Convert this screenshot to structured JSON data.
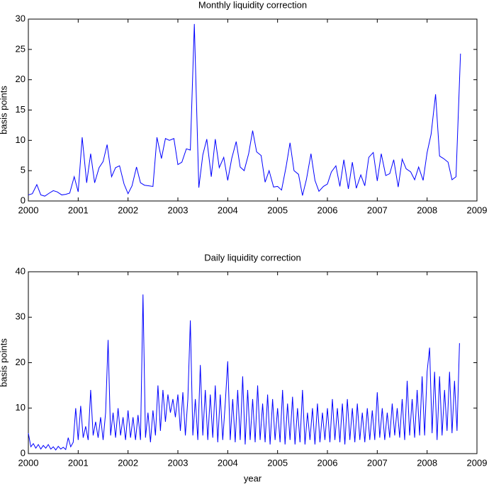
{
  "chart_data": [
    {
      "type": "line",
      "title": "Monthly liquidity correction",
      "ylabel": "basis points",
      "xlim": [
        2000,
        2009
      ],
      "xticks": [
        2000,
        2001,
        2002,
        2003,
        2004,
        2005,
        2006,
        2007,
        2008,
        2009
      ],
      "ylim": [
        0,
        30
      ],
      "yticks": [
        0,
        5,
        10,
        15,
        20,
        25,
        30
      ],
      "grid": false,
      "series": [
        {
          "name": "Monthly liquidity correction",
          "color": "#0000ff",
          "x": [
            2000,
            2000.08,
            2000.17,
            2000.25,
            2000.33,
            2000.42,
            2000.5,
            2000.58,
            2000.67,
            2000.75,
            2000.83,
            2000.92,
            2001,
            2001.08,
            2001.17,
            2001.25,
            2001.33,
            2001.42,
            2001.5,
            2001.58,
            2001.67,
            2001.75,
            2001.83,
            2001.92,
            2002,
            2002.08,
            2002.17,
            2002.25,
            2002.33,
            2002.42,
            2002.5,
            2002.58,
            2002.67,
            2002.75,
            2002.83,
            2002.92,
            2003,
            2003.08,
            2003.17,
            2003.25,
            2003.33,
            2003.42,
            2003.5,
            2003.58,
            2003.67,
            2003.75,
            2003.83,
            2003.92,
            2004,
            2004.08,
            2004.17,
            2004.25,
            2004.33,
            2004.42,
            2004.5,
            2004.58,
            2004.67,
            2004.75,
            2004.83,
            2004.92,
            2005,
            2005.08,
            2005.17,
            2005.25,
            2005.33,
            2005.42,
            2005.5,
            2005.58,
            2005.67,
            2005.75,
            2005.83,
            2005.92,
            2006,
            2006.08,
            2006.17,
            2006.25,
            2006.33,
            2006.42,
            2006.5,
            2006.58,
            2006.67,
            2006.75,
            2006.83,
            2006.92,
            2007,
            2007.08,
            2007.17,
            2007.25,
            2007.33,
            2007.42,
            2007.5,
            2007.58,
            2007.67,
            2007.75,
            2007.83,
            2007.92,
            2008,
            2008.08,
            2008.17,
            2008.25,
            2008.33,
            2008.42,
            2008.5,
            2008.58,
            2008.67
          ],
          "values": [
            1.0,
            1.2,
            2.7,
            1.0,
            0.8,
            1.3,
            1.7,
            1.5,
            1.0,
            1.1,
            1.3,
            4.0,
            1.5,
            10.5,
            3.0,
            7.8,
            3.0,
            5.5,
            6.5,
            9.3,
            4.0,
            5.5,
            5.8,
            2.8,
            1.2,
            2.5,
            5.6,
            3.0,
            2.6,
            2.5,
            2.4,
            10.5,
            7.0,
            10.3,
            10.0,
            10.3,
            6.0,
            6.4,
            8.6,
            8.4,
            29.2,
            2.2,
            7.6,
            10.2,
            4.0,
            10.2,
            5.5,
            7.2,
            3.4,
            7.0,
            9.8,
            5.6,
            5.0,
            7.8,
            11.6,
            8.1,
            7.5,
            3.1,
            5.0,
            2.3,
            2.4,
            1.8,
            5.6,
            9.6,
            5.0,
            4.4,
            0.9,
            3.6,
            7.8,
            3.4,
            1.6,
            2.4,
            2.8,
            4.8,
            5.8,
            2.4,
            6.8,
            2.0,
            6.4,
            2.1,
            4.3,
            2.5,
            7.2,
            8.0,
            3.3,
            7.8,
            4.2,
            4.5,
            6.8,
            2.3,
            6.9,
            5.3,
            4.8,
            3.5,
            5.6,
            3.4,
            8.0,
            11.0,
            17.6,
            7.4,
            7.0,
            6.4,
            3.5,
            4.0,
            24.3
          ]
        }
      ]
    },
    {
      "type": "line",
      "title": "Daily liquidity correction",
      "xlabel": "year",
      "ylabel": "basis points",
      "xlim": [
        2000,
        2009
      ],
      "xticks": [
        2000,
        2001,
        2002,
        2003,
        2004,
        2005,
        2006,
        2007,
        2008,
        2009
      ],
      "ylim": [
        0,
        40
      ],
      "yticks": [
        0,
        10,
        20,
        30,
        40
      ],
      "grid": false,
      "series": [
        {
          "name": "Daily liquidity correction",
          "color": "#0000ff",
          "x": [
            2000,
            2000.05,
            2000.1,
            2000.15,
            2000.2,
            2000.25,
            2000.3,
            2000.35,
            2000.4,
            2000.45,
            2000.5,
            2000.55,
            2000.6,
            2000.65,
            2000.7,
            2000.75,
            2000.8,
            2000.85,
            2000.9,
            2000.95,
            2001,
            2001.05,
            2001.1,
            2001.15,
            2001.2,
            2001.25,
            2001.3,
            2001.35,
            2001.4,
            2001.45,
            2001.5,
            2001.55,
            2001.6,
            2001.65,
            2001.7,
            2001.75,
            2001.8,
            2001.85,
            2001.9,
            2001.95,
            2002,
            2002.05,
            2002.1,
            2002.15,
            2002.2,
            2002.25,
            2002.3,
            2002.35,
            2002.4,
            2002.45,
            2002.5,
            2002.55,
            2002.6,
            2002.65,
            2002.7,
            2002.75,
            2002.8,
            2002.85,
            2002.9,
            2002.95,
            2003,
            2003.05,
            2003.1,
            2003.15,
            2003.2,
            2003.25,
            2003.3,
            2003.35,
            2003.4,
            2003.45,
            2003.5,
            2003.55,
            2003.6,
            2003.65,
            2003.7,
            2003.75,
            2003.8,
            2003.85,
            2003.9,
            2003.95,
            2004,
            2004.05,
            2004.1,
            2004.15,
            2004.2,
            2004.25,
            2004.3,
            2004.35,
            2004.4,
            2004.45,
            2004.5,
            2004.55,
            2004.6,
            2004.65,
            2004.7,
            2004.75,
            2004.8,
            2004.85,
            2004.9,
            2004.95,
            2005,
            2005.05,
            2005.1,
            2005.15,
            2005.2,
            2005.25,
            2005.3,
            2005.35,
            2005.4,
            2005.45,
            2005.5,
            2005.55,
            2005.6,
            2005.65,
            2005.7,
            2005.75,
            2005.8,
            2005.85,
            2005.9,
            2005.95,
            2006,
            2006.05,
            2006.1,
            2006.15,
            2006.2,
            2006.25,
            2006.3,
            2006.35,
            2006.4,
            2006.45,
            2006.5,
            2006.55,
            2006.6,
            2006.65,
            2006.7,
            2006.75,
            2006.8,
            2006.85,
            2006.9,
            2006.95,
            2007,
            2007.05,
            2007.1,
            2007.15,
            2007.2,
            2007.25,
            2007.3,
            2007.35,
            2007.4,
            2007.45,
            2007.5,
            2007.55,
            2007.6,
            2007.65,
            2007.7,
            2007.75,
            2007.8,
            2007.85,
            2007.9,
            2007.95,
            2008,
            2008.05,
            2008.1,
            2008.15,
            2008.2,
            2008.25,
            2008.3,
            2008.35,
            2008.4,
            2008.45,
            2008.5,
            2008.55,
            2008.6,
            2008.65
          ],
          "values": [
            4.5,
            1.5,
            2.2,
            1.2,
            2.0,
            1.0,
            1.8,
            1.2,
            2.0,
            1.0,
            1.5,
            0.8,
            1.6,
            1.0,
            1.4,
            0.9,
            3.5,
            1.5,
            2.5,
            10.0,
            3.0,
            10.5,
            3.5,
            6.0,
            3.0,
            14.0,
            4.0,
            7.0,
            3.5,
            8.0,
            3.0,
            9.0,
            25.0,
            4.0,
            9.0,
            3.5,
            10.0,
            4.0,
            8.0,
            3.0,
            9.5,
            3.5,
            8.0,
            3.0,
            8.5,
            3.0,
            35.0,
            3.5,
            9.0,
            2.5,
            9.5,
            4.0,
            15.0,
            5.0,
            14.0,
            7.0,
            13.0,
            9.0,
            12.0,
            8.0,
            13.0,
            5.0,
            13.5,
            4.0,
            12.0,
            29.3,
            4.0,
            12.0,
            3.0,
            19.5,
            4.0,
            14.0,
            3.0,
            13.0,
            3.5,
            15.0,
            2.5,
            13.0,
            3.0,
            11.0,
            20.3,
            3.0,
            12.0,
            2.5,
            14.0,
            3.0,
            17.0,
            2.0,
            14.0,
            3.0,
            12.0,
            2.5,
            15.0,
            3.0,
            11.0,
            2.5,
            13.0,
            2.0,
            12.0,
            3.0,
            10.0,
            2.5,
            14.0,
            2.0,
            11.0,
            3.0,
            12.5,
            2.0,
            10.0,
            2.5,
            14.0,
            2.0,
            9.0,
            3.0,
            10.0,
            2.0,
            11.0,
            2.5,
            9.0,
            3.0,
            10.0,
            2.5,
            12.0,
            3.0,
            10.0,
            2.5,
            11.0,
            2.0,
            12.0,
            3.0,
            10.0,
            2.5,
            11.0,
            3.0,
            9.0,
            2.5,
            10.0,
            3.0,
            9.5,
            3.0,
            13.5,
            3.5,
            10.0,
            3.0,
            9.0,
            3.5,
            11.0,
            4.0,
            10.0,
            3.5,
            12.0,
            3.0,
            16.0,
            4.0,
            12.0,
            3.5,
            14.0,
            4.0,
            17.0,
            4.0,
            18.0,
            23.3,
            4.5,
            18.0,
            3.0,
            17.0,
            4.0,
            14.0,
            5.0,
            18.0,
            4.5,
            16.0,
            5.0,
            24.3
          ]
        }
      ]
    }
  ]
}
